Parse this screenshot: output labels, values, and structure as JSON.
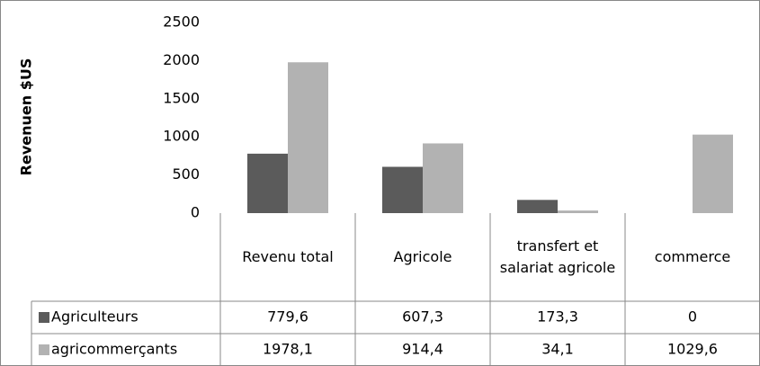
{
  "chart_data": {
    "type": "bar",
    "y_label": "Revenuen $US",
    "categories": [
      "Revenu total",
      "Agricole",
      "transfert et salariat agricole",
      "commerce"
    ],
    "series": [
      {
        "name": "Agriculteurs",
        "color": "#5b5b5b",
        "values": [
          779.6,
          607.3,
          173.3,
          0
        ],
        "value_labels": [
          "779,6",
          "607,3",
          "173,3",
          "0"
        ]
      },
      {
        "name": "agricommerçants",
        "color": "#b2b2b2",
        "values": [
          1978.1,
          914.4,
          34.1,
          1029.6
        ],
        "value_labels": [
          "1978,1",
          "914,4",
          "34,1",
          "1029,6"
        ]
      }
    ],
    "ylim": [
      0,
      2500
    ],
    "yticks": [
      0,
      500,
      1000,
      1500,
      2000,
      2500
    ],
    "data_table": true
  }
}
